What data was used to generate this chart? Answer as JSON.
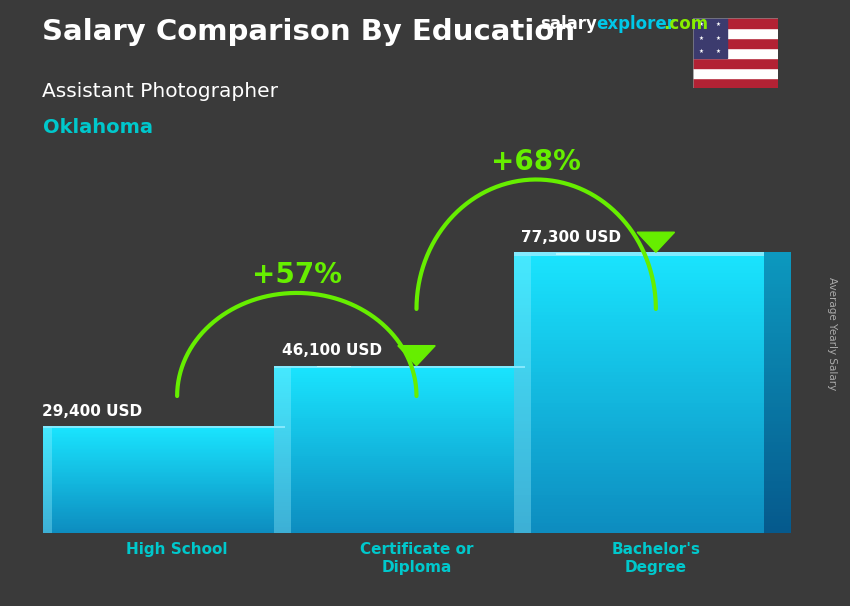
{
  "title_salary": "Salary Comparison By Education",
  "subtitle_job": "Assistant Photographer",
  "subtitle_location": "Oklahoma",
  "brand_salary": "salary",
  "brand_explorer": "explorer",
  "brand_com": ".com",
  "ylabel": "Average Yearly Salary",
  "categories": [
    "High School",
    "Certificate or\nDiploma",
    "Bachelor's\nDegree"
  ],
  "values": [
    29400,
    46100,
    77300
  ],
  "value_labels": [
    "29,400 USD",
    "46,100 USD",
    "77,300 USD"
  ],
  "pct_labels": [
    "+57%",
    "+68%"
  ],
  "bar_color_light": "#1ecfef",
  "bar_color_dark": "#0090bb",
  "bar_color_shine": "#55e0ff",
  "bg_color": "#3a3a3a",
  "text_white": "#ffffff",
  "text_cyan": "#00c8cc",
  "text_green": "#88ff00",
  "arrow_green": "#66ee00",
  "brand_color_cyan": "#00c8e8",
  "brand_color_green": "#88ee00",
  "ylim_max": 100000,
  "bar_width": 0.38,
  "bar_positions": [
    0.18,
    0.5,
    0.82
  ],
  "flag_colors_stripes": [
    "#B22234",
    "#FFFFFF",
    "#B22234",
    "#FFFFFF",
    "#B22234",
    "#FFFFFF",
    "#B22234"
  ],
  "flag_blue": "#3C3B6E"
}
